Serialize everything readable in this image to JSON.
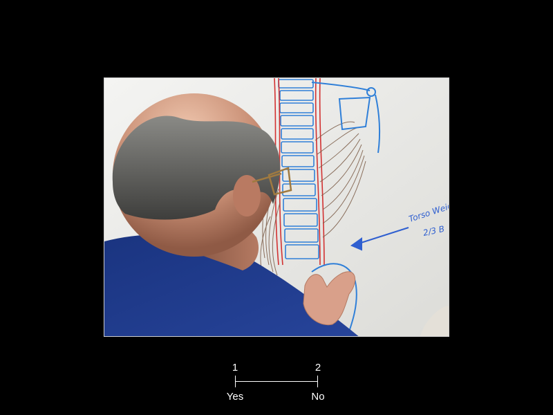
{
  "photo": {
    "annotation_line1": "Torso Weig",
    "annotation_line2": "2/3 B"
  },
  "scale": {
    "left_number": "1",
    "right_number": "2",
    "left_label": "Yes",
    "right_label": "No"
  },
  "colors": {
    "background": "#000000",
    "scale_text": "#ffffff",
    "marker_blue": "#2f7fd8",
    "marker_red": "#d23030",
    "shirt": "#1f3b8a"
  }
}
